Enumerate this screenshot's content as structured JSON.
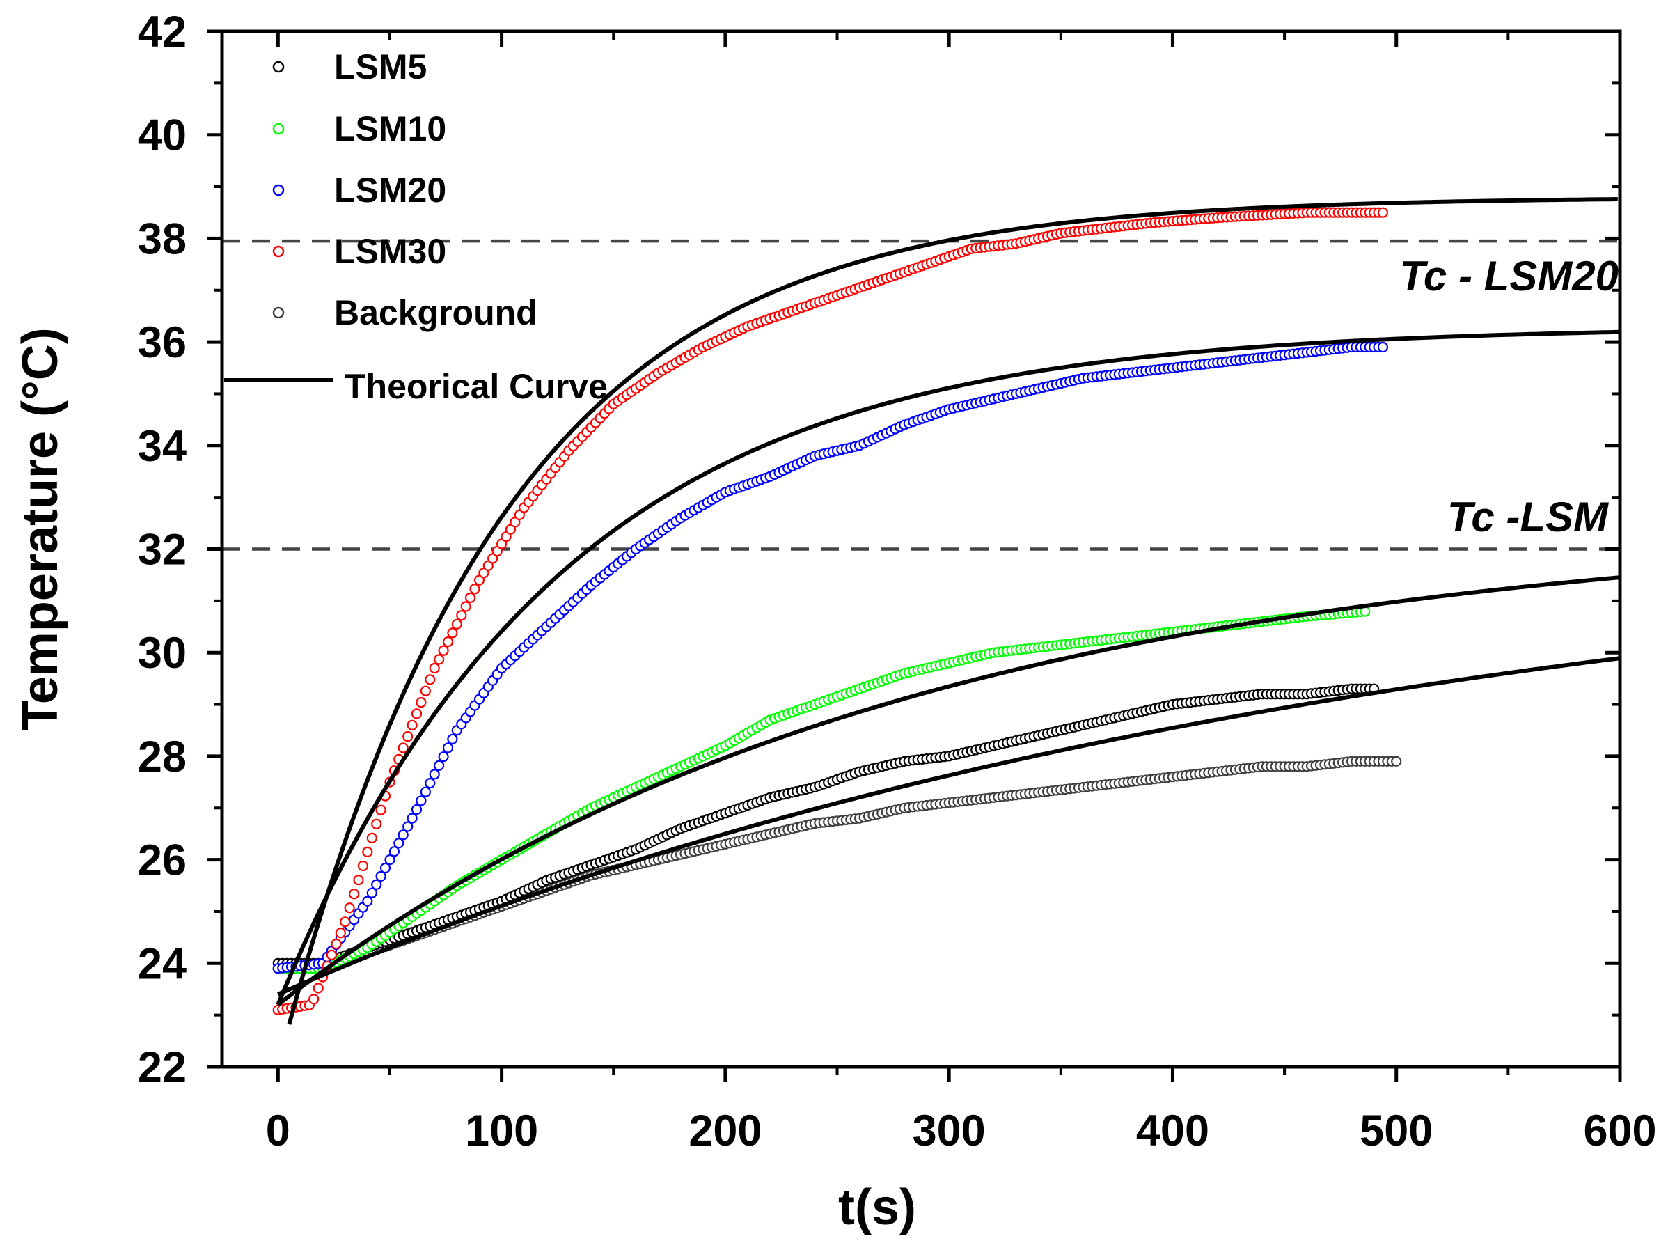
{
  "chart_data": {
    "type": "scatter",
    "title": "",
    "xlabel": "t(s)",
    "ylabel": "Temperature (°C)",
    "xlim": [
      -25,
      600
    ],
    "ylim": [
      22,
      42
    ],
    "xticks": [
      0,
      100,
      200,
      300,
      400,
      500,
      600
    ],
    "yticks": [
      22,
      24,
      26,
      28,
      30,
      32,
      34,
      36,
      38,
      40,
      42
    ],
    "grid": false,
    "legend_position": "top-left",
    "series": [
      {
        "name": "LSM5",
        "color": "#000000",
        "marker": "open-circle",
        "t_max": 490,
        "points": [
          [
            0,
            24.0
          ],
          [
            20,
            24.0
          ],
          [
            40,
            24.3
          ],
          [
            60,
            24.6
          ],
          [
            80,
            24.9
          ],
          [
            100,
            25.2
          ],
          [
            120,
            25.6
          ],
          [
            140,
            25.9
          ],
          [
            160,
            26.2
          ],
          [
            180,
            26.6
          ],
          [
            200,
            26.9
          ],
          [
            220,
            27.2
          ],
          [
            240,
            27.4
          ],
          [
            260,
            27.7
          ],
          [
            280,
            27.9
          ],
          [
            300,
            28.0
          ],
          [
            320,
            28.2
          ],
          [
            340,
            28.4
          ],
          [
            360,
            28.6
          ],
          [
            380,
            28.8
          ],
          [
            400,
            29.0
          ],
          [
            420,
            29.1
          ],
          [
            440,
            29.2
          ],
          [
            460,
            29.2
          ],
          [
            480,
            29.3
          ],
          [
            490,
            29.3
          ]
        ]
      },
      {
        "name": "LSM10",
        "color": "#00ff00",
        "marker": "open-circle",
        "t_max": 487,
        "points": [
          [
            0,
            23.9
          ],
          [
            20,
            23.9
          ],
          [
            40,
            24.3
          ],
          [
            60,
            24.9
          ],
          [
            80,
            25.5
          ],
          [
            100,
            26.0
          ],
          [
            120,
            26.5
          ],
          [
            140,
            27.0
          ],
          [
            160,
            27.4
          ],
          [
            180,
            27.8
          ],
          [
            200,
            28.2
          ],
          [
            220,
            28.7
          ],
          [
            240,
            29.0
          ],
          [
            260,
            29.3
          ],
          [
            280,
            29.6
          ],
          [
            300,
            29.8
          ],
          [
            320,
            30.0
          ],
          [
            340,
            30.1
          ],
          [
            360,
            30.2
          ],
          [
            380,
            30.3
          ],
          [
            400,
            30.4
          ],
          [
            420,
            30.5
          ],
          [
            440,
            30.6
          ],
          [
            460,
            30.7
          ],
          [
            487,
            30.8
          ]
        ]
      },
      {
        "name": "LSM20",
        "color": "#0000ff",
        "marker": "open-circle",
        "t_max": 495,
        "points": [
          [
            0,
            23.9
          ],
          [
            20,
            24.0
          ],
          [
            40,
            25.2
          ],
          [
            60,
            26.8
          ],
          [
            80,
            28.5
          ],
          [
            100,
            29.7
          ],
          [
            120,
            30.5
          ],
          [
            140,
            31.3
          ],
          [
            160,
            32.0
          ],
          [
            180,
            32.6
          ],
          [
            200,
            33.1
          ],
          [
            220,
            33.4
          ],
          [
            240,
            33.8
          ],
          [
            260,
            34.0
          ],
          [
            280,
            34.4
          ],
          [
            300,
            34.7
          ],
          [
            320,
            34.9
          ],
          [
            340,
            35.1
          ],
          [
            360,
            35.3
          ],
          [
            380,
            35.4
          ],
          [
            400,
            35.5
          ],
          [
            420,
            35.6
          ],
          [
            440,
            35.7
          ],
          [
            460,
            35.8
          ],
          [
            480,
            35.9
          ],
          [
            495,
            35.9
          ]
        ]
      },
      {
        "name": "LSM30",
        "color": "#ff0000",
        "marker": "open-circle",
        "t_max": 495,
        "points": [
          [
            0,
            23.1
          ],
          [
            15,
            23.2
          ],
          [
            30,
            24.8
          ],
          [
            50,
            27.5
          ],
          [
            70,
            29.7
          ],
          [
            90,
            31.4
          ],
          [
            110,
            32.8
          ],
          [
            130,
            33.9
          ],
          [
            150,
            34.8
          ],
          [
            170,
            35.4
          ],
          [
            190,
            35.9
          ],
          [
            210,
            36.3
          ],
          [
            230,
            36.6
          ],
          [
            250,
            36.9
          ],
          [
            270,
            37.2
          ],
          [
            290,
            37.5
          ],
          [
            310,
            37.8
          ],
          [
            330,
            37.9
          ],
          [
            350,
            38.1
          ],
          [
            370,
            38.2
          ],
          [
            390,
            38.3
          ],
          [
            420,
            38.4
          ],
          [
            460,
            38.5
          ],
          [
            495,
            38.5
          ]
        ]
      },
      {
        "name": "Background",
        "color": "#404040",
        "marker": "open-circle",
        "t_max": 500,
        "points": [
          [
            0,
            23.9
          ],
          [
            20,
            23.9
          ],
          [
            40,
            24.2
          ],
          [
            60,
            24.5
          ],
          [
            80,
            24.8
          ],
          [
            100,
            25.1
          ],
          [
            120,
            25.4
          ],
          [
            140,
            25.7
          ],
          [
            160,
            25.9
          ],
          [
            180,
            26.1
          ],
          [
            200,
            26.3
          ],
          [
            220,
            26.5
          ],
          [
            240,
            26.7
          ],
          [
            260,
            26.8
          ],
          [
            280,
            27.0
          ],
          [
            300,
            27.1
          ],
          [
            320,
            27.2
          ],
          [
            340,
            27.3
          ],
          [
            360,
            27.4
          ],
          [
            380,
            27.5
          ],
          [
            400,
            27.6
          ],
          [
            420,
            27.7
          ],
          [
            440,
            27.8
          ],
          [
            460,
            27.8
          ],
          [
            480,
            27.9
          ],
          [
            500,
            27.9
          ]
        ]
      }
    ],
    "theoretical_curves": [
      {
        "name": "Theorical Curve",
        "fits": "LSM30",
        "t_start": 5,
        "equation": "T = 22 + 16.8*(1 - exp(-t/100))",
        "T0": 22.0,
        "dT": 16.8,
        "tau": 100
      },
      {
        "name": "Theorical Curve",
        "fits": "LSM20",
        "t_start": 0,
        "equation": "T = 23.2 + 13.1*(1 - exp(-t/125))",
        "T0": 23.2,
        "dT": 13.1,
        "tau": 125
      },
      {
        "name": "Theorical Curve",
        "fits": "LSM10",
        "t_start": 0,
        "equation": "T = 23.2 + 9.35*(1 - exp(-t/280))",
        "T0": 23.2,
        "dT": 9.35,
        "tau": 280
      },
      {
        "name": "Theorical Curve",
        "fits": "LSM5",
        "t_start": 0,
        "equation": "T = 23.4 + 9.1*(1 - exp(-t/480))",
        "T0": 23.4,
        "dT": 9.1,
        "tau": 480
      }
    ],
    "reference_lines": [
      {
        "y": 37.95,
        "style": "dashed",
        "label": "Tc - LSM20"
      },
      {
        "y": 32.0,
        "style": "dashed",
        "label": "Tc -LSM"
      }
    ],
    "legend": {
      "entries": [
        "LSM5",
        "LSM10",
        "LSM20",
        "LSM30",
        "Background",
        "Theorical Curve"
      ]
    }
  }
}
